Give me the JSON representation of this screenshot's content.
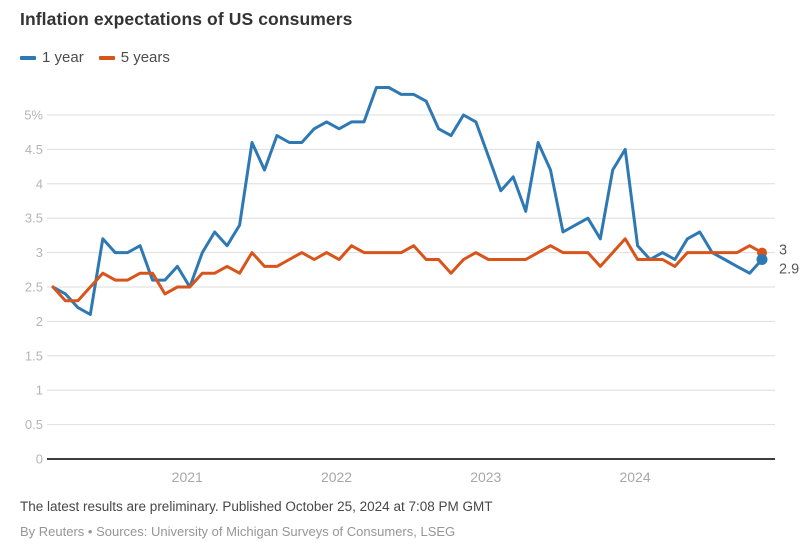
{
  "title": "Inflation expectations of US consumers",
  "legend": [
    {
      "label": "1 year",
      "color": "#2e79b3"
    },
    {
      "label": "5 years",
      "color": "#d8541a"
    }
  ],
  "chart_data": {
    "type": "line",
    "title": "Inflation expectations of US consumers",
    "unit": "percent",
    "x_start": "2020-01",
    "x_freq": "monthly",
    "x_year_ticks": [
      "2021",
      "2022",
      "2023",
      "2024"
    ],
    "ylim": [
      0,
      5
    ],
    "y_tick_labels": [
      "5%",
      "4.5",
      "4",
      "3.5",
      "3",
      "2.5",
      "2",
      "1.5",
      "1",
      "0.5",
      "0"
    ],
    "grid": true,
    "legend_position": "top-left",
    "series": [
      {
        "name": "1 year",
        "color": "#2e79b3",
        "end_label": "2.9",
        "values": [
          2.5,
          2.4,
          2.2,
          2.1,
          3.2,
          3.0,
          3.0,
          3.1,
          2.6,
          2.6,
          2.8,
          2.5,
          3.0,
          3.3,
          3.1,
          3.4,
          4.6,
          4.2,
          4.7,
          4.6,
          4.6,
          4.8,
          4.9,
          4.8,
          4.9,
          4.9,
          5.4,
          5.4,
          5.3,
          5.3,
          5.2,
          4.8,
          4.7,
          5.0,
          4.9,
          4.4,
          3.9,
          4.1,
          3.6,
          4.6,
          4.2,
          3.3,
          3.4,
          3.5,
          3.2,
          4.2,
          4.5,
          3.1,
          2.9,
          3.0,
          2.9,
          3.2,
          3.3,
          3.0,
          2.9,
          2.8,
          2.7,
          2.9
        ]
      },
      {
        "name": "5 years",
        "color": "#d8541a",
        "end_label": "3",
        "values": [
          2.5,
          2.3,
          2.3,
          2.5,
          2.7,
          2.6,
          2.6,
          2.7,
          2.7,
          2.4,
          2.5,
          2.5,
          2.7,
          2.7,
          2.8,
          2.7,
          3.0,
          2.8,
          2.8,
          2.9,
          3.0,
          2.9,
          3.0,
          2.9,
          3.1,
          3.0,
          3.0,
          3.0,
          3.0,
          3.1,
          2.9,
          2.9,
          2.7,
          2.9,
          3.0,
          2.9,
          2.9,
          2.9,
          2.9,
          3.0,
          3.1,
          3.0,
          3.0,
          3.0,
          2.8,
          3.0,
          3.2,
          2.9,
          2.9,
          2.9,
          2.8,
          3.0,
          3.0,
          3.0,
          3.0,
          3.0,
          3.1,
          3.0
        ]
      }
    ]
  },
  "footer": {
    "note": "The latest results are preliminary. Published October 25, 2024 at 7:08 PM GMT",
    "byline": "By Reuters • Sources: University of Michigan Surveys of Consumers, LSEG"
  },
  "colors": {
    "grid": "#dedede",
    "zero_axis": "#3d3d3d",
    "y_tick_text": "#b5b5b5",
    "x_tick_text": "#a8a8a8",
    "end_label_text": "#5a5a5a",
    "background": "#ffffff"
  }
}
